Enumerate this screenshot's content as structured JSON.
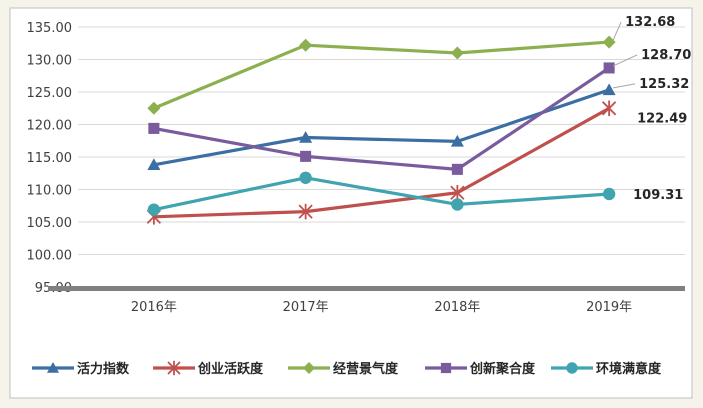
{
  "chart_data": {
    "type": "line",
    "title": "",
    "xlabel": "",
    "ylabel": "",
    "categories": [
      "2016年",
      "2017年",
      "2018年",
      "2019年"
    ],
    "ylim": [
      95,
      135
    ],
    "yticks": [
      "95.00",
      "100.00",
      "105.00",
      "110.00",
      "115.00",
      "120.00",
      "125.00",
      "130.00",
      "135.00"
    ],
    "grid": "horizontal",
    "legend_position": "bottom",
    "series": [
      {
        "name": "活力指数",
        "values": [
          113.8,
          118.0,
          117.4,
          125.32
        ],
        "color": "#3b6fa3",
        "marker": "triangle",
        "end_label": "125.32"
      },
      {
        "name": "创业活跃度",
        "values": [
          105.8,
          106.6,
          109.5,
          122.49
        ],
        "color": "#c0504d",
        "marker": "star",
        "end_label": "122.49"
      },
      {
        "name": "经营景气度",
        "values": [
          122.5,
          132.2,
          131.0,
          132.68
        ],
        "color": "#8cb04f",
        "marker": "diamond",
        "end_label": "132.68"
      },
      {
        "name": "创新聚合度",
        "values": [
          119.4,
          115.1,
          113.1,
          128.7
        ],
        "color": "#7a5c9e",
        "marker": "square",
        "end_label": "128.70"
      },
      {
        "name": "环境满意度",
        "values": [
          106.9,
          111.8,
          107.7,
          109.31
        ],
        "color": "#3fa3b0",
        "marker": "circle",
        "end_label": "109.31"
      }
    ]
  }
}
